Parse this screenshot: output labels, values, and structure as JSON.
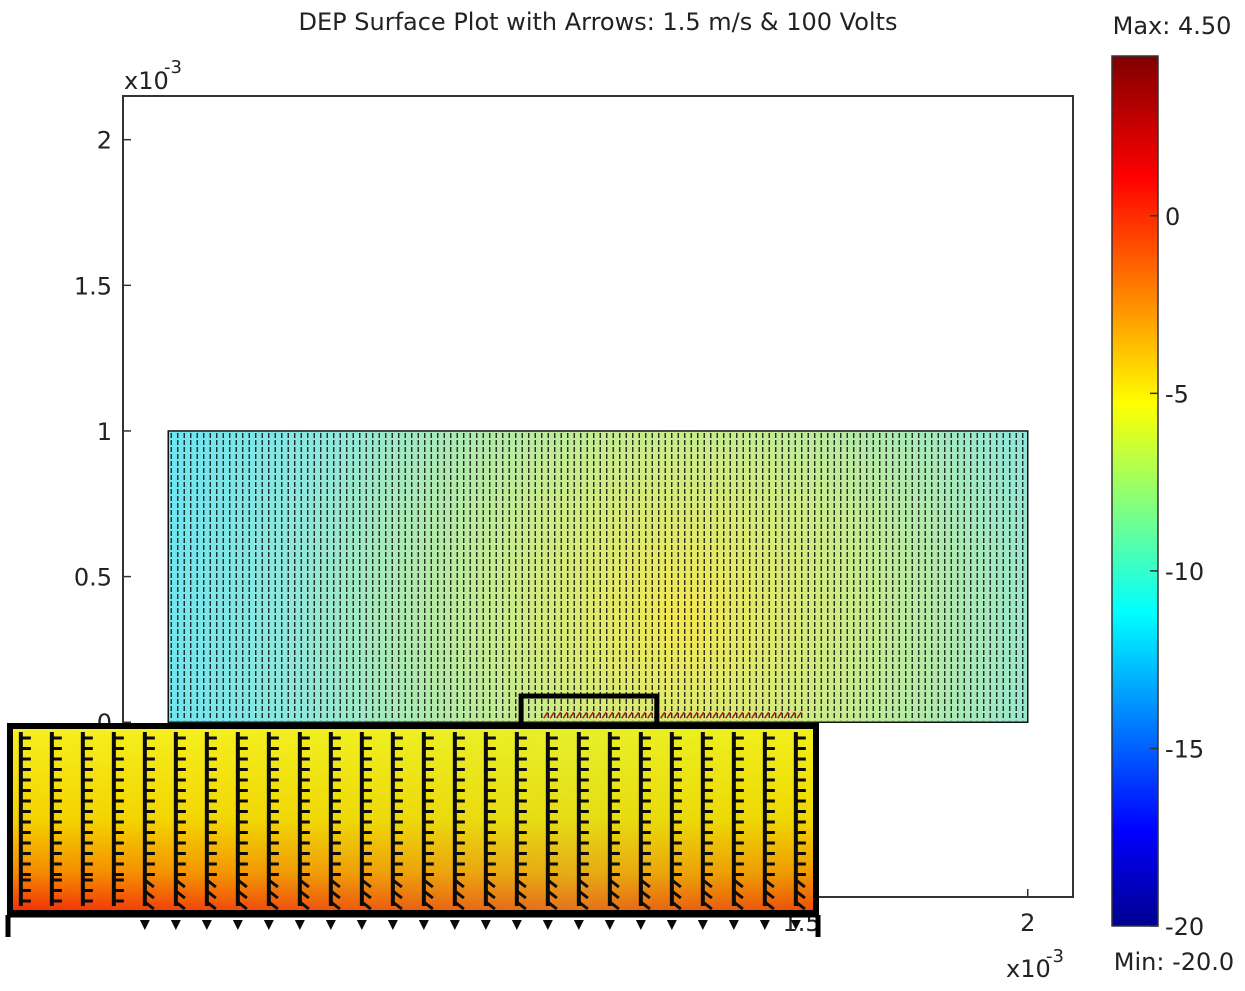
{
  "chart_data": {
    "type": "heatmap",
    "title": "DEP Surface Plot with Arrows: 1.5 m/s & 100 Volts",
    "xlabel": "",
    "ylabel": "",
    "x_exponent_label": "x10",
    "x_exponent_power": "-3",
    "y_exponent_label": "x10",
    "y_exponent_power": "-3",
    "xlim": [
      0,
      2.1
    ],
    "ylim": [
      -0.6,
      2.15
    ],
    "x_ticks": [
      {
        "value": 1.5,
        "label": "1.5"
      },
      {
        "value": 2.0,
        "label": "2"
      }
    ],
    "y_ticks": [
      {
        "value": 0.0,
        "label": "0"
      },
      {
        "value": 0.5,
        "label": "0.5"
      },
      {
        "value": 1.0,
        "label": "1"
      },
      {
        "value": 1.5,
        "label": "1.5"
      },
      {
        "value": 2.0,
        "label": "2"
      }
    ],
    "domain": {
      "x_range": [
        0.1,
        2.0
      ],
      "y_range": [
        0.0,
        1.0
      ]
    },
    "electrode": {
      "x_range": [
        0.93,
        1.5
      ],
      "y": 0.0
    },
    "field_min_value": -11,
    "field_max_value": -2,
    "zoom_region": {
      "x_range": [
        0.88,
        1.18
      ],
      "y_range": [
        -0.07,
        0.09
      ]
    },
    "colorbar": {
      "max_label": "Max: 4.50",
      "min_label": "Min: -20.0",
      "min": -20.0,
      "max": 4.5,
      "ticks": [
        {
          "value": 0,
          "label": "0"
        },
        {
          "value": -5,
          "label": "-5"
        },
        {
          "value": -10,
          "label": "-10"
        },
        {
          "value": -15,
          "label": "-15"
        },
        {
          "value": -20,
          "label": "-20"
        }
      ],
      "colormap": "jet"
    },
    "grid": false,
    "arrows": true
  }
}
